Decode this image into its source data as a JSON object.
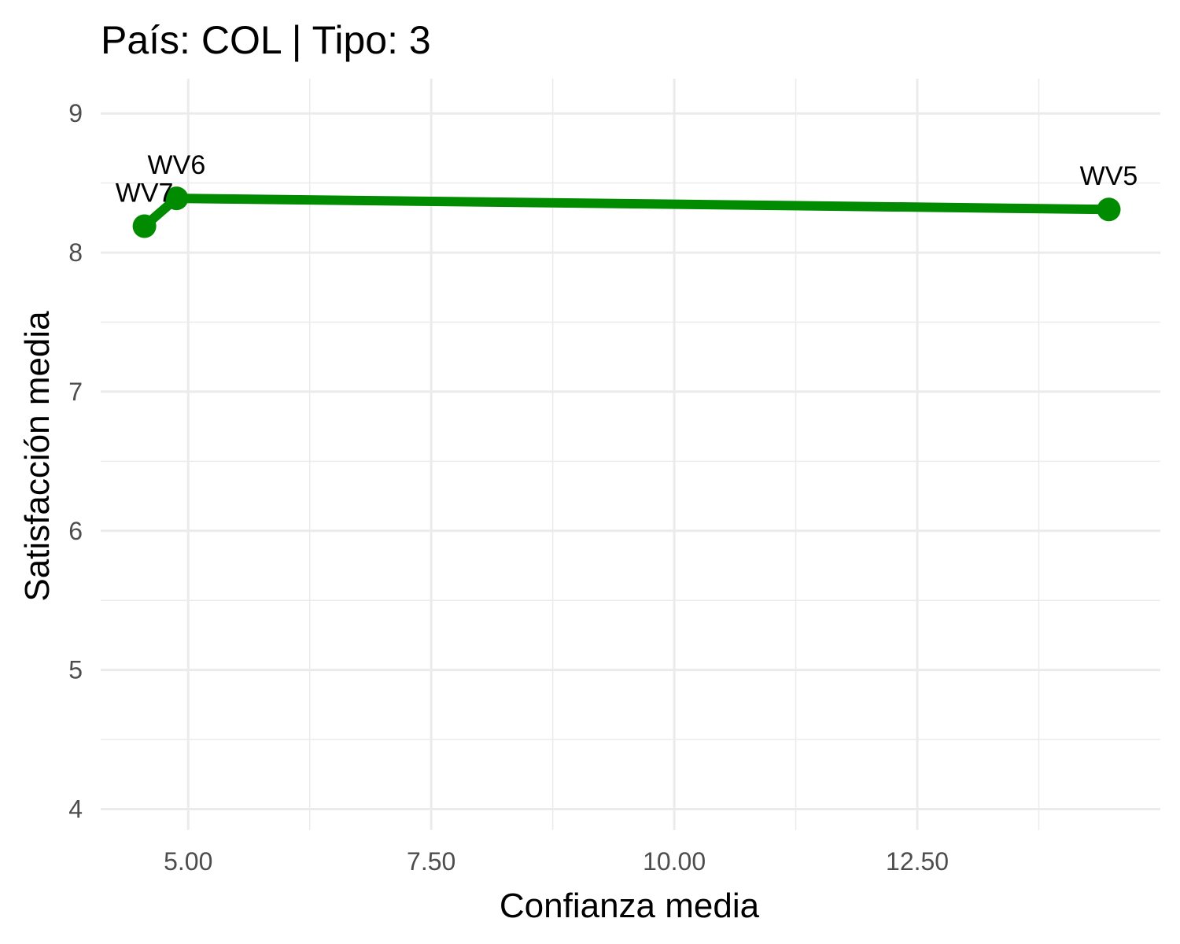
{
  "chart_data": {
    "type": "line",
    "title": "País: COL | Tipo: 3",
    "xlabel": "Confianza media",
    "ylabel": "Satisfacción media",
    "xlim": [
      4.1,
      15.0
    ],
    "ylim": [
      3.85,
      9.25
    ],
    "x_ticks": [
      5.0,
      7.5,
      10.0,
      12.5
    ],
    "x_tick_labels": [
      "5.00",
      "7.50",
      "10.00",
      "12.50"
    ],
    "y_ticks": [
      4,
      5,
      6,
      7,
      8,
      9
    ],
    "y_tick_labels": [
      "4",
      "5",
      "6",
      "7",
      "8",
      "9"
    ],
    "grid": true,
    "series": [
      {
        "color": "#008B00",
        "points": [
          {
            "label": "WV7",
            "x": 4.55,
            "y": 8.19
          },
          {
            "label": "WV6",
            "x": 4.88,
            "y": 8.39
          },
          {
            "label": "WV5",
            "x": 14.47,
            "y": 8.31
          }
        ]
      }
    ]
  }
}
